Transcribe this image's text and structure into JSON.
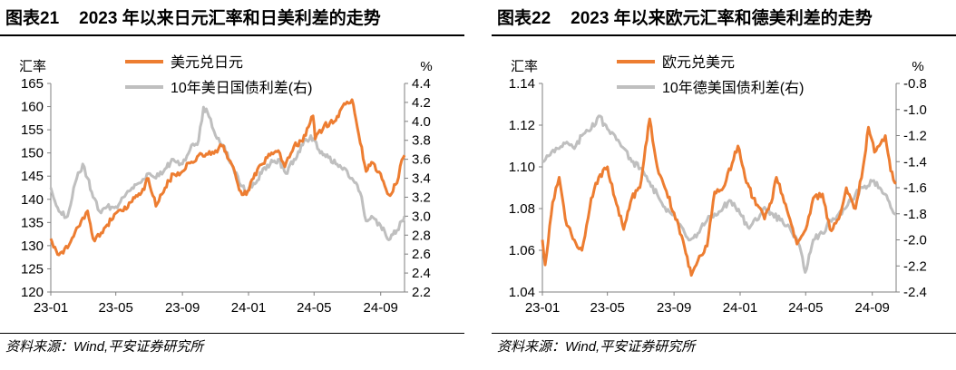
{
  "charts": [
    {
      "figure_no": "图表21",
      "title": "2023 年以来日元汇率和日美利差的走势",
      "source": "资料来源：Wind,平安证券研究所",
      "chart_data": {
        "type": "line",
        "title": "2023 年以来日元汇率和日美利差的走势",
        "y_left": {
          "label": "汇率",
          "min": 120,
          "max": 165,
          "ticks": [
            120,
            125,
            130,
            135,
            140,
            145,
            150,
            155,
            160,
            165
          ],
          "decimals": 0
        },
        "y_right": {
          "label": "%",
          "min": 2.2,
          "max": 4.4,
          "ticks": [
            2.2,
            2.4,
            2.6,
            2.8,
            3.0,
            3.2,
            3.4,
            3.6,
            3.8,
            4.0,
            4.2,
            4.4
          ],
          "decimals": 1
        },
        "x_ticks": [
          "23-01",
          "23-05",
          "23-09",
          "24-01",
          "24-05",
          "24-09"
        ],
        "x_range": [
          "2023-01-01",
          "2024-10-15"
        ],
        "legend_placement": "top-center",
        "grid": false,
        "series": [
          {
            "name": "美元兑日元",
            "axis": "left",
            "color": "#ED7D31",
            "points": [
              [
                "2023-01-01",
                131.5
              ],
              [
                "2023-01-16",
                128.0
              ],
              [
                "2023-02-01",
                129.5
              ],
              [
                "2023-02-15",
                133.0
              ],
              [
                "2023-03-01",
                136.0
              ],
              [
                "2023-03-10",
                137.5
              ],
              [
                "2023-03-20",
                131.5
              ],
              [
                "2023-04-01",
                132.0
              ],
              [
                "2023-04-15",
                134.5
              ],
              [
                "2023-05-01",
                137.0
              ],
              [
                "2023-05-15",
                137.5
              ],
              [
                "2023-05-31",
                139.5
              ],
              [
                "2023-06-15",
                141.0
              ],
              [
                "2023-06-30",
                144.5
              ],
              [
                "2023-07-14",
                138.5
              ],
              [
                "2023-07-31",
                142.5
              ],
              [
                "2023-08-15",
                145.5
              ],
              [
                "2023-09-01",
                146.0
              ],
              [
                "2023-09-15",
                147.8
              ],
              [
                "2023-10-01",
                149.5
              ],
              [
                "2023-10-15",
                149.8
              ],
              [
                "2023-11-01",
                150.5
              ],
              [
                "2023-11-13",
                151.5
              ],
              [
                "2023-12-01",
                147.5
              ],
              [
                "2023-12-15",
                142.0
              ],
              [
                "2023-12-28",
                141.0
              ],
              [
                "2024-01-10",
                144.5
              ],
              [
                "2024-01-25",
                147.5
              ],
              [
                "2024-02-10",
                149.5
              ],
              [
                "2024-02-25",
                150.5
              ],
              [
                "2024-03-08",
                147.0
              ],
              [
                "2024-03-25",
                151.5
              ],
              [
                "2024-04-10",
                152.5
              ],
              [
                "2024-04-29",
                158.0
              ],
              [
                "2024-05-03",
                153.0
              ],
              [
                "2024-05-20",
                156.0
              ],
              [
                "2024-06-10",
                157.0
              ],
              [
                "2024-06-28",
                160.5
              ],
              [
                "2024-07-10",
                161.5
              ],
              [
                "2024-07-20",
                155.5
              ],
              [
                "2024-08-05",
                146.0
              ],
              [
                "2024-08-15",
                148.0
              ],
              [
                "2024-09-01",
                145.5
              ],
              [
                "2024-09-16",
                141.0
              ],
              [
                "2024-10-01",
                143.5
              ],
              [
                "2024-10-10",
                148.5
              ],
              [
                "2024-10-15",
                149.5
              ]
            ]
          },
          {
            "name": "10年美日国债利差(右)",
            "axis": "right",
            "color": "#BFBFBF",
            "points": [
              [
                "2023-01-01",
                3.3
              ],
              [
                "2023-01-16",
                3.05
              ],
              [
                "2023-02-01",
                3.0
              ],
              [
                "2023-02-15",
                3.35
              ],
              [
                "2023-03-01",
                3.55
              ],
              [
                "2023-03-10",
                3.4
              ],
              [
                "2023-03-20",
                3.2
              ],
              [
                "2023-04-01",
                3.05
              ],
              [
                "2023-04-15",
                3.1
              ],
              [
                "2023-05-01",
                3.1
              ],
              [
                "2023-05-15",
                3.2
              ],
              [
                "2023-05-31",
                3.3
              ],
              [
                "2023-06-15",
                3.35
              ],
              [
                "2023-06-30",
                3.45
              ],
              [
                "2023-07-14",
                3.4
              ],
              [
                "2023-07-31",
                3.5
              ],
              [
                "2023-08-15",
                3.6
              ],
              [
                "2023-09-01",
                3.55
              ],
              [
                "2023-09-15",
                3.7
              ],
              [
                "2023-10-01",
                3.8
              ],
              [
                "2023-10-10",
                4.15
              ],
              [
                "2023-10-20",
                4.05
              ],
              [
                "2023-11-01",
                3.85
              ],
              [
                "2023-11-15",
                3.75
              ],
              [
                "2023-12-01",
                3.55
              ],
              [
                "2023-12-15",
                3.35
              ],
              [
                "2023-12-28",
                3.25
              ],
              [
                "2024-01-10",
                3.35
              ],
              [
                "2024-01-25",
                3.45
              ],
              [
                "2024-02-10",
                3.55
              ],
              [
                "2024-02-25",
                3.6
              ],
              [
                "2024-03-10",
                3.45
              ],
              [
                "2024-03-25",
                3.6
              ],
              [
                "2024-04-10",
                3.75
              ],
              [
                "2024-04-25",
                3.85
              ],
              [
                "2024-05-10",
                3.7
              ],
              [
                "2024-05-25",
                3.65
              ],
              [
                "2024-06-10",
                3.55
              ],
              [
                "2024-06-28",
                3.5
              ],
              [
                "2024-07-10",
                3.4
              ],
              [
                "2024-07-25",
                3.25
              ],
              [
                "2024-08-05",
                2.95
              ],
              [
                "2024-08-15",
                3.0
              ],
              [
                "2024-09-01",
                2.9
              ],
              [
                "2024-09-16",
                2.75
              ],
              [
                "2024-10-01",
                2.85
              ],
              [
                "2024-10-10",
                2.95
              ],
              [
                "2024-10-15",
                3.0
              ]
            ]
          }
        ]
      }
    },
    {
      "figure_no": "图表22",
      "title": "2023 年以来欧元汇率和德美利差的走势",
      "source": "资料来源：Wind,平安证券研究所",
      "chart_data": {
        "type": "line",
        "title": "2023 年以来欧元汇率和德美利差的走势",
        "y_left": {
          "label": "汇率",
          "min": 1.04,
          "max": 1.14,
          "ticks": [
            1.04,
            1.06,
            1.08,
            1.1,
            1.12,
            1.14
          ],
          "decimals": 2
        },
        "y_right": {
          "label": "%",
          "min": -2.4,
          "max": -0.8,
          "ticks": [
            -2.4,
            -2.2,
            -2.0,
            -1.8,
            -1.6,
            -1.4,
            -1.2,
            -1.0,
            -0.8
          ],
          "decimals": 1
        },
        "x_ticks": [
          "23-01",
          "23-05",
          "23-09",
          "24-01",
          "24-05",
          "24-09"
        ],
        "x_range": [
          "2023-01-01",
          "2024-10-15"
        ],
        "legend_placement": "top-center",
        "grid": false,
        "series": [
          {
            "name": "欧元兑美元",
            "axis": "left",
            "color": "#ED7D31",
            "points": [
              [
                "2023-01-01",
                1.065
              ],
              [
                "2023-01-06",
                1.053
              ],
              [
                "2023-01-20",
                1.083
              ],
              [
                "2023-02-01",
                1.095
              ],
              [
                "2023-02-15",
                1.072
              ],
              [
                "2023-03-01",
                1.065
              ],
              [
                "2023-03-15",
                1.06
              ],
              [
                "2023-04-01",
                1.085
              ],
              [
                "2023-04-15",
                1.095
              ],
              [
                "2023-05-01",
                1.1
              ],
              [
                "2023-05-15",
                1.085
              ],
              [
                "2023-05-31",
                1.07
              ],
              [
                "2023-06-15",
                1.085
              ],
              [
                "2023-06-30",
                1.09
              ],
              [
                "2023-07-18",
                1.123
              ],
              [
                "2023-08-01",
                1.1
              ],
              [
                "2023-08-15",
                1.09
              ],
              [
                "2023-09-01",
                1.078
              ],
              [
                "2023-09-15",
                1.067
              ],
              [
                "2023-10-03",
                1.048
              ],
              [
                "2023-10-15",
                1.055
              ],
              [
                "2023-11-01",
                1.062
              ],
              [
                "2023-11-15",
                1.088
              ],
              [
                "2023-12-01",
                1.09
              ],
              [
                "2023-12-28",
                1.11
              ],
              [
                "2024-01-10",
                1.095
              ],
              [
                "2024-01-25",
                1.085
              ],
              [
                "2024-02-15",
                1.075
              ],
              [
                "2024-03-01",
                1.085
              ],
              [
                "2024-03-08",
                1.095
              ],
              [
                "2024-03-25",
                1.082
              ],
              [
                "2024-04-15",
                1.063
              ],
              [
                "2024-05-01",
                1.07
              ],
              [
                "2024-05-15",
                1.085
              ],
              [
                "2024-06-01",
                1.087
              ],
              [
                "2024-06-15",
                1.07
              ],
              [
                "2024-07-01",
                1.075
              ],
              [
                "2024-07-15",
                1.09
              ],
              [
                "2024-08-01",
                1.08
              ],
              [
                "2024-08-15",
                1.1
              ],
              [
                "2024-08-25",
                1.119
              ],
              [
                "2024-09-05",
                1.107
              ],
              [
                "2024-09-25",
                1.115
              ],
              [
                "2024-10-05",
                1.098
              ],
              [
                "2024-10-15",
                1.092
              ]
            ]
          },
          {
            "name": "10年德美国债利差(右)",
            "axis": "right",
            "color": "#BFBFBF",
            "points": [
              [
                "2023-01-01",
                -1.4
              ],
              [
                "2023-01-15",
                -1.35
              ],
              [
                "2023-02-01",
                -1.3
              ],
              [
                "2023-02-15",
                -1.25
              ],
              [
                "2023-03-01",
                -1.3
              ],
              [
                "2023-03-15",
                -1.2
              ],
              [
                "2023-04-01",
                -1.15
              ],
              [
                "2023-04-15",
                -1.05
              ],
              [
                "2023-05-01",
                -1.15
              ],
              [
                "2023-05-15",
                -1.2
              ],
              [
                "2023-06-01",
                -1.3
              ],
              [
                "2023-06-15",
                -1.4
              ],
              [
                "2023-07-01",
                -1.45
              ],
              [
                "2023-07-15",
                -1.55
              ],
              [
                "2023-08-01",
                -1.65
              ],
              [
                "2023-08-15",
                -1.75
              ],
              [
                "2023-09-01",
                -1.8
              ],
              [
                "2023-09-15",
                -1.9
              ],
              [
                "2023-10-01",
                -2.0
              ],
              [
                "2023-10-15",
                -1.95
              ],
              [
                "2023-11-01",
                -1.85
              ],
              [
                "2023-11-15",
                -1.8
              ],
              [
                "2023-12-01",
                -1.75
              ],
              [
                "2023-12-15",
                -1.7
              ],
              [
                "2024-01-01",
                -1.8
              ],
              [
                "2024-01-15",
                -1.9
              ],
              [
                "2024-02-01",
                -1.85
              ],
              [
                "2024-02-15",
                -1.75
              ],
              [
                "2024-03-01",
                -1.8
              ],
              [
                "2024-03-15",
                -1.85
              ],
              [
                "2024-04-01",
                -1.9
              ],
              [
                "2024-04-20",
                -2.05
              ],
              [
                "2024-04-30",
                -2.25
              ],
              [
                "2024-05-15",
                -2.0
              ],
              [
                "2024-06-01",
                -1.95
              ],
              [
                "2024-06-15",
                -1.85
              ],
              [
                "2024-07-01",
                -1.8
              ],
              [
                "2024-07-15",
                -1.75
              ],
              [
                "2024-08-01",
                -1.65
              ],
              [
                "2024-08-15",
                -1.6
              ],
              [
                "2024-09-01",
                -1.55
              ],
              [
                "2024-09-15",
                -1.6
              ],
              [
                "2024-09-25",
                -1.65
              ],
              [
                "2024-10-05",
                -1.75
              ],
              [
                "2024-10-15",
                -1.8
              ]
            ]
          }
        ]
      }
    }
  ]
}
